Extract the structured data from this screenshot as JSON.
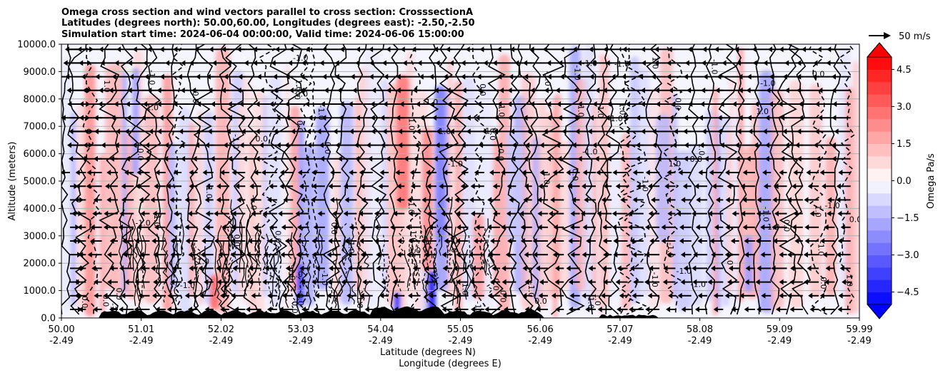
{
  "chart_data": {
    "type": "heatmap",
    "title_lines": [
      "Omega cross section and wind vectors parallel to cross section: CrosssectionA",
      "Latitudes (degrees north): 50.00,60.00, Longitudes (degrees east): -2.50,-2.50",
      "Simulation start time: 2024-06-04 00:00:00, Valid time: 2024-06-06 15:00:00"
    ],
    "xlabel_line1": "Latitude (degrees N)",
    "xlabel_line2": "Longitude (degrees E)",
    "ylabel": "Altitude (meters)",
    "x_ticks": [
      {
        "lat": "50.00",
        "lon": "-2.49"
      },
      {
        "lat": "51.01",
        "lon": "-2.49"
      },
      {
        "lat": "52.02",
        "lon": "-2.49"
      },
      {
        "lat": "53.03",
        "lon": "-2.49"
      },
      {
        "lat": "54.04",
        "lon": "-2.49"
      },
      {
        "lat": "55.05",
        "lon": "-2.49"
      },
      {
        "lat": "56.06",
        "lon": "-2.49"
      },
      {
        "lat": "57.07",
        "lon": "-2.49"
      },
      {
        "lat": "58.08",
        "lon": "-2.49"
      },
      {
        "lat": "59.09",
        "lon": "-2.49"
      },
      {
        "lat": "59.99",
        "lon": "-2.49"
      }
    ],
    "y_ticks": [
      "0.0",
      "1000.0",
      "2000.0",
      "3000.0",
      "4000.0",
      "5000.0",
      "6000.0",
      "7000.0",
      "8000.0",
      "9000.0",
      "10000.0"
    ],
    "xlim": [
      50.0,
      59.99
    ],
    "ylim": [
      0,
      10000
    ],
    "grid": "horizontal",
    "colorbar": {
      "label": "Omega Pa/s",
      "ticks": [
        "4.5",
        "3.0",
        "1.5",
        "0.0",
        "−1.5",
        "−3.0",
        "−4.5"
      ],
      "range": [
        -5.0,
        5.0
      ],
      "extend": "both",
      "colormap": "bwr"
    },
    "quiver_key": {
      "label": "50 m/s"
    },
    "contour_labels": [
      "0.0",
      "1.0",
      "-1.0",
      "2.0",
      "-2.0"
    ]
  }
}
